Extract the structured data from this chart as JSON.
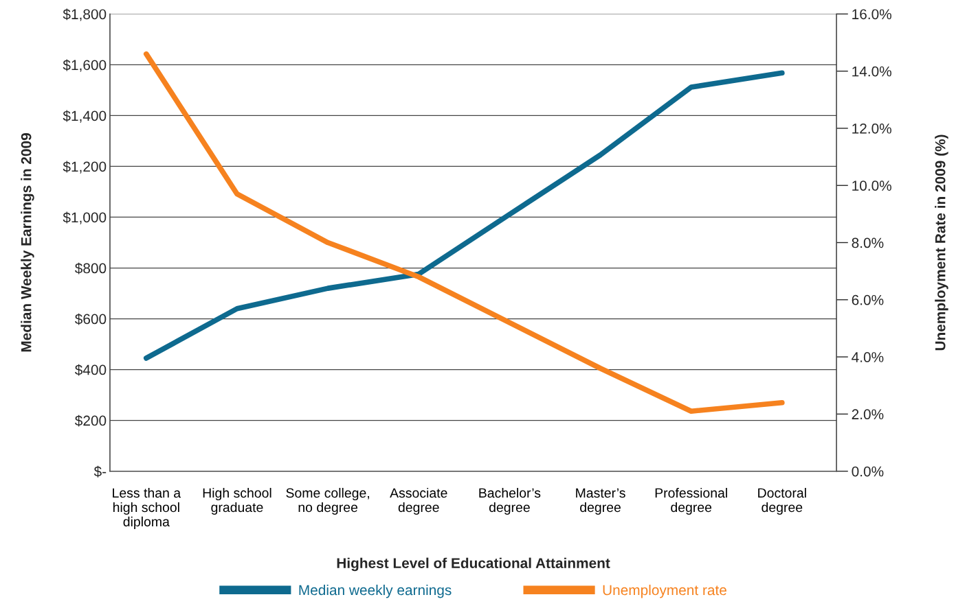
{
  "chart_data": {
    "type": "line",
    "categories": [
      "Less than a\nhigh school\ndiploma",
      "High school\ngraduate",
      "Some college,\nno degree",
      "Associate\ndegree",
      "Bachelor’s\ndegree",
      "Master’s\ndegree",
      "Professional\ndegree",
      "Doctoral\ndegree"
    ],
    "series": [
      {
        "name": "Median weekly earnings",
        "color": "#0e6a8f",
        "values": [
          445,
          640,
          720,
          776,
          1011,
          1245,
          1512,
          1568
        ]
      },
      {
        "name": "Unemployment rate",
        "color": "#f6821f",
        "axis": "y2",
        "values": [
          14.6,
          9.7,
          8.0,
          6.8,
          5.2,
          3.6,
          2.1,
          2.4
        ]
      }
    ],
    "xlabel": "Highest Level of Educational Attainment",
    "ylabel": "Median Weekly Earnings in 2009",
    "y2label": "Unemployment Rate in 2009 (%)",
    "ylim": [
      0,
      1800
    ],
    "yticks": [
      {
        "value": 0,
        "label": "$-"
      },
      {
        "value": 200,
        "label": "$200"
      },
      {
        "value": 400,
        "label": "$400"
      },
      {
        "value": 600,
        "label": "$600"
      },
      {
        "value": 800,
        "label": "$800"
      },
      {
        "value": 1000,
        "label": "$1,000"
      },
      {
        "value": 1200,
        "label": "$1,200"
      },
      {
        "value": 1400,
        "label": "$1,400"
      },
      {
        "value": 1600,
        "label": "$1,600"
      },
      {
        "value": 1800,
        "label": "$1,800"
      }
    ],
    "y2lim": [
      0,
      16
    ],
    "y2ticks": [
      {
        "value": 0,
        "label": "0.0%"
      },
      {
        "value": 2,
        "label": "2.0%"
      },
      {
        "value": 4,
        "label": "4.0%"
      },
      {
        "value": 6,
        "label": "6.0%"
      },
      {
        "value": 8,
        "label": "8.0%"
      },
      {
        "value": 10,
        "label": "10.0%"
      },
      {
        "value": 12,
        "label": "12.0%"
      },
      {
        "value": 14,
        "label": "14.0%"
      },
      {
        "value": 16,
        "label": "16.0%"
      }
    ],
    "grid": "y",
    "legend": "bottom",
    "marker": "none",
    "line_style": "solid"
  }
}
